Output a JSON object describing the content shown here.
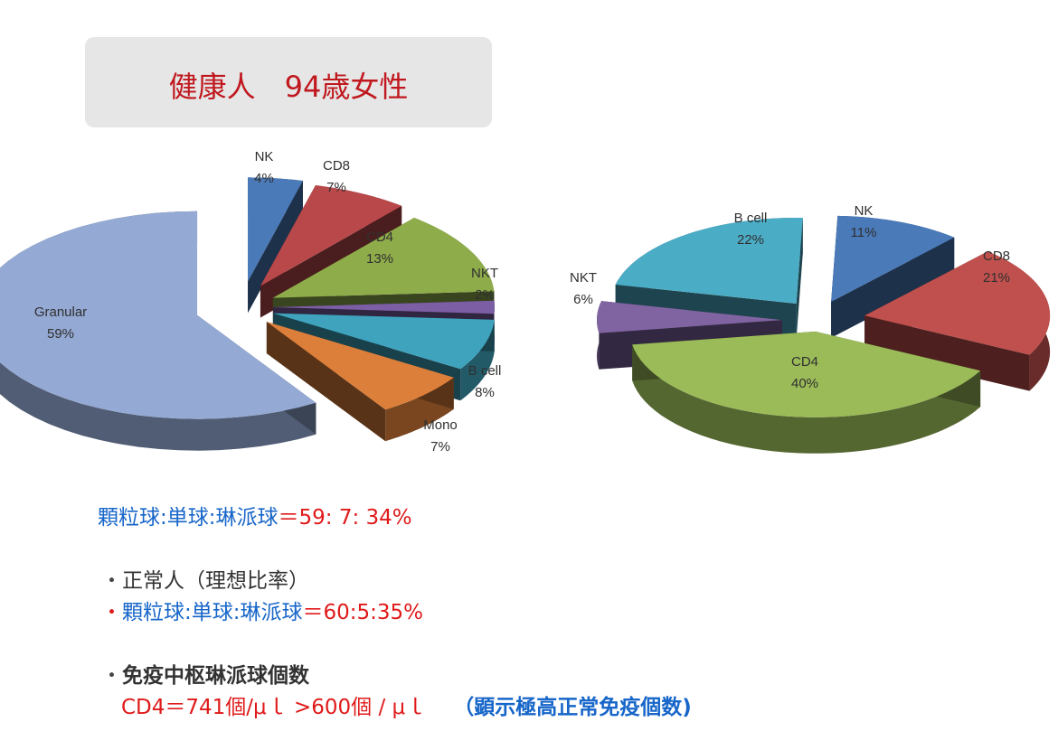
{
  "title": "健康人　94歳女性",
  "chart_data": [
    {
      "type": "pie",
      "slices": [
        {
          "label": "NK",
          "value": 4,
          "pct": "4%"
        },
        {
          "label": "CD8",
          "value": 7,
          "pct": "7%"
        },
        {
          "label": "CD4",
          "value": 13,
          "pct": "13%"
        },
        {
          "label": "NKT",
          "value": 2,
          "pct": "2%"
        },
        {
          "label": "B cell",
          "value": 8,
          "pct": "8%"
        },
        {
          "label": "Mono",
          "value": 7,
          "pct": "7%"
        },
        {
          "label": "Granular",
          "value": 59,
          "pct": "59%"
        }
      ],
      "colors": [
        "#4a7ab8",
        "#b9484a",
        "#8fac4a",
        "#7b5ea3",
        "#3fa3bd",
        "#dc7f3a",
        "#94a9d3"
      ],
      "exploded": true
    },
    {
      "type": "pie",
      "slices": [
        {
          "label": "NK",
          "value": 11,
          "pct": "11%"
        },
        {
          "label": "CD8",
          "value": 21,
          "pct": "21%"
        },
        {
          "label": "CD4",
          "value": 40,
          "pct": "40%"
        },
        {
          "label": "NKT",
          "value": 6,
          "pct": "6%"
        },
        {
          "label": "B cell",
          "value": 22,
          "pct": "22%"
        }
      ],
      "colors": [
        "#4a7ab8",
        "#c0504d",
        "#9bbb59",
        "#8064a2",
        "#4bacc6"
      ],
      "exploded": true
    }
  ],
  "text": {
    "ratio_prefix": "顆粒球:単球:琳派球",
    "ratio_value": "＝59: 7: 34%",
    "normal_bullet": "・",
    "normal_title": "正常人（理想比率）",
    "normal_ratio_prefix": "顆粒球:単球:琳派球",
    "normal_ratio_value": "＝60:5:35%",
    "count_bullet": "・",
    "count_title": "免疫中枢琳派球個数",
    "count_value": "CD4＝741個/μｌ >600個 / μｌ",
    "count_note": "（顕示極高正常免疫個数)"
  }
}
